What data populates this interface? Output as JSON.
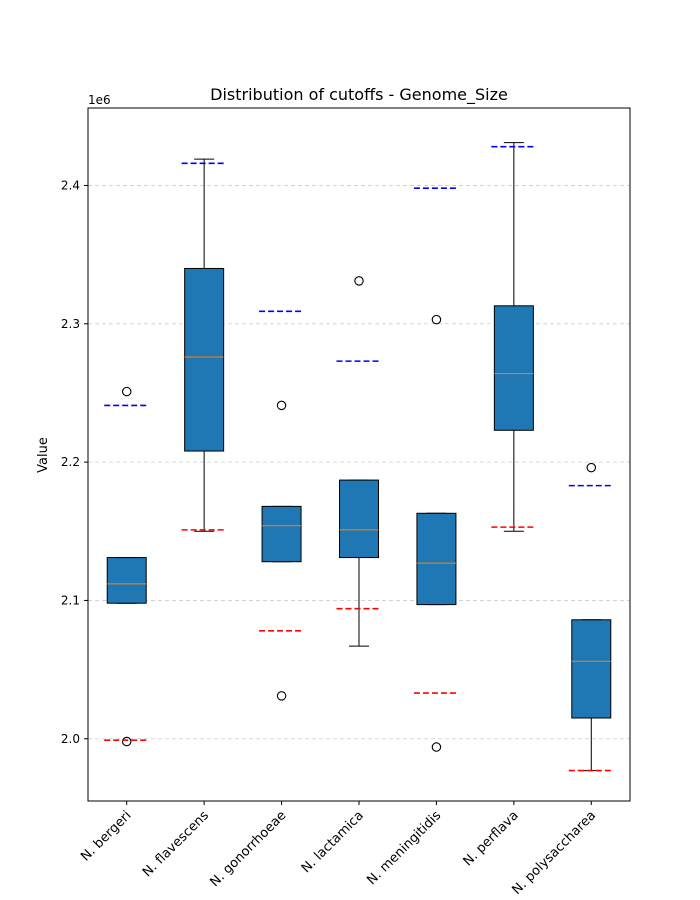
{
  "chart_data": {
    "type": "box",
    "title": "Distribution of cutoffs - Genome_Size",
    "xlabel": "",
    "ylabel": "Value",
    "y_offset_label": "1e6",
    "ylim": [
      1955000,
      2456000
    ],
    "yticks": [
      2000000,
      2100000,
      2200000,
      2300000,
      2400000
    ],
    "ytick_labels": [
      "2.0",
      "2.1",
      "2.2",
      "2.3",
      "2.4"
    ],
    "grid": "y-dashed",
    "colors": {
      "box_fill": "#1f77b4",
      "median": "#ff7f0e",
      "upper_cutoff": "#0000ff",
      "lower_cutoff": "#ff0000",
      "grid": "#cccccc"
    },
    "categories": [
      "N. bergeri",
      "N. flavescens",
      "N. gonorrhoeae",
      "N. lactamica",
      "N. meningitidis",
      "N. perflava",
      "N. polysaccharea"
    ],
    "boxes": [
      {
        "q1": 2098000,
        "median": 2112000,
        "q3": 2131000,
        "whisker_low": 2098000,
        "whisker_high": 2131000,
        "outliers": [
          2251000,
          1998000
        ],
        "upper_cutoff": 2241000,
        "lower_cutoff": 1999000
      },
      {
        "q1": 2208000,
        "median": 2276000,
        "q3": 2340000,
        "whisker_low": 2150000,
        "whisker_high": 2419000,
        "outliers": [],
        "upper_cutoff": 2416000,
        "lower_cutoff": 2151000
      },
      {
        "q1": 2128000,
        "median": 2154000,
        "q3": 2168000,
        "whisker_low": 2128000,
        "whisker_high": 2168000,
        "outliers": [
          2241000,
          2031000
        ],
        "upper_cutoff": 2309000,
        "lower_cutoff": 2078000
      },
      {
        "q1": 2131000,
        "median": 2151000,
        "q3": 2187000,
        "whisker_low": 2067000,
        "whisker_high": 2187000,
        "outliers": [
          2331000
        ],
        "upper_cutoff": 2273000,
        "lower_cutoff": 2094000
      },
      {
        "q1": 2097000,
        "median": 2127000,
        "q3": 2163000,
        "whisker_low": 2097000,
        "whisker_high": 2163000,
        "outliers": [
          2303000,
          1994000
        ],
        "upper_cutoff": 2398000,
        "lower_cutoff": 2033000
      },
      {
        "q1": 2223000,
        "median": 2264000,
        "q3": 2313000,
        "whisker_low": 2150000,
        "whisker_high": 2431000,
        "outliers": [],
        "upper_cutoff": 2428000,
        "lower_cutoff": 2153000
      },
      {
        "q1": 2015000,
        "median": 2056000,
        "q3": 2086000,
        "whisker_low": 1977000,
        "whisker_high": 2086000,
        "outliers": [
          2196000
        ],
        "upper_cutoff": 2183000,
        "lower_cutoff": 1977000
      }
    ]
  }
}
